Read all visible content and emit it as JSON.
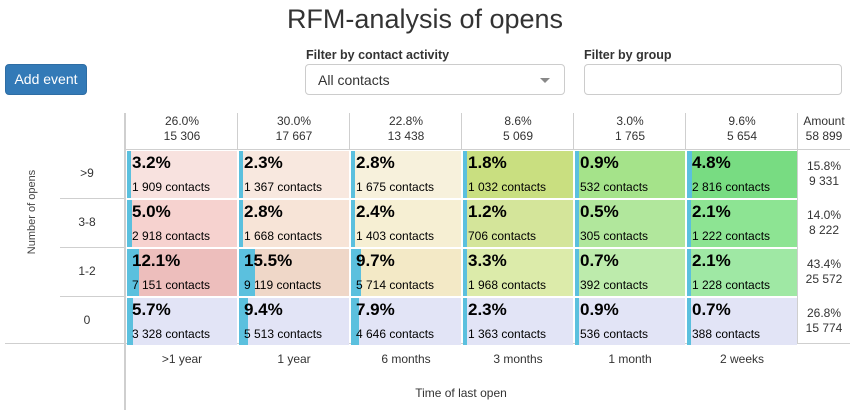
{
  "title": "RFM-analysis of opens",
  "add_event_label": "Add event",
  "filters": {
    "activity_label": "Filter by contact activity",
    "activity_value": "All contacts",
    "group_label": "Filter by group",
    "group_value": ""
  },
  "columns": [
    {
      "pct": "26.0%",
      "count": "15 306",
      "label": ">1 year"
    },
    {
      "pct": "30.0%",
      "count": "17 667",
      "label": "1 year"
    },
    {
      "pct": "22.8%",
      "count": "13 438",
      "label": "6 months"
    },
    {
      "pct": "8.6%",
      "count": "5 069",
      "label": "3 months"
    },
    {
      "pct": "3.0%",
      "count": "1 765",
      "label": "1 month"
    },
    {
      "pct": "9.6%",
      "count": "5 654",
      "label": "2 weeks"
    }
  ],
  "amount_header": {
    "label": "Amount",
    "total": "58 899"
  },
  "y_axis_label": "Number of opens",
  "x_axis_label": "Time of last open",
  "rows": [
    {
      "label": ">9",
      "pct": "15.8%",
      "count": "9 331",
      "cells": [
        {
          "pct": "3.2%",
          "count": "1 909 contacts",
          "share": 3.2,
          "color": "#f8e2df"
        },
        {
          "pct": "2.3%",
          "count": "1 367 contacts",
          "share": 2.3,
          "color": "#f8e8df"
        },
        {
          "pct": "2.8%",
          "count": "1 675 contacts",
          "share": 2.8,
          "color": "#f7f1dc"
        },
        {
          "pct": "1.8%",
          "count": "1 032 contacts",
          "share": 1.8,
          "color": "#c9df80"
        },
        {
          "pct": "0.9%",
          "count": "532 contacts",
          "share": 0.9,
          "color": "#a5e38a"
        },
        {
          "pct": "4.8%",
          "count": "2 816 contacts",
          "share": 4.8,
          "color": "#78dc82"
        }
      ]
    },
    {
      "label": "3-8",
      "pct": "14.0%",
      "count": "8 222",
      "cells": [
        {
          "pct": "5.0%",
          "count": "2 918 contacts",
          "share": 5.0,
          "color": "#f6d2cf"
        },
        {
          "pct": "2.8%",
          "count": "1 668 contacts",
          "share": 2.8,
          "color": "#f7e4d7"
        },
        {
          "pct": "2.4%",
          "count": "1 403 contacts",
          "share": 2.4,
          "color": "#f6efd3"
        },
        {
          "pct": "1.2%",
          "count": "706 contacts",
          "share": 1.2,
          "color": "#d4e59a"
        },
        {
          "pct": "0.5%",
          "count": "305 contacts",
          "share": 0.5,
          "color": "#b1e79c"
        },
        {
          "pct": "2.1%",
          "count": "1 222 contacts",
          "share": 2.1,
          "color": "#8de493"
        }
      ]
    },
    {
      "label": "1-2",
      "pct": "43.4%",
      "count": "25 572",
      "cells": [
        {
          "pct": "12.1%",
          "count": "7 151 contacts",
          "share": 12.1,
          "color": "#edbebc"
        },
        {
          "pct": "15.5%",
          "count": "9 119 contacts",
          "share": 15.5,
          "color": "#efd7c8"
        },
        {
          "pct": "9.7%",
          "count": "5 714 contacts",
          "share": 9.7,
          "color": "#f3e9c6"
        },
        {
          "pct": "3.3%",
          "count": "1 968 contacts",
          "share": 3.3,
          "color": "#dcebaa"
        },
        {
          "pct": "0.7%",
          "count": "392 contacts",
          "share": 0.7,
          "color": "#bdebac"
        },
        {
          "pct": "2.1%",
          "count": "1 228 contacts",
          "share": 2.1,
          "color": "#9fe8a4"
        }
      ]
    },
    {
      "label": "0",
      "pct": "26.8%",
      "count": "15 774",
      "cells": [
        {
          "pct": "5.7%",
          "count": "3 328 contacts",
          "share": 5.7,
          "color": "#e2e4f6"
        },
        {
          "pct": "9.4%",
          "count": "5 513 contacts",
          "share": 9.4,
          "color": "#e2e4f6"
        },
        {
          "pct": "7.9%",
          "count": "4 646 contacts",
          "share": 7.9,
          "color": "#e2e4f6"
        },
        {
          "pct": "2.3%",
          "count": "1 363 contacts",
          "share": 2.3,
          "color": "#e2e4f6"
        },
        {
          "pct": "0.9%",
          "count": "536 contacts",
          "share": 0.9,
          "color": "#e2e4f6"
        },
        {
          "pct": "0.7%",
          "count": "388 contacts",
          "share": 0.7,
          "color": "#e2e4f6"
        }
      ]
    }
  ],
  "bar_color": "#5bc0de"
}
